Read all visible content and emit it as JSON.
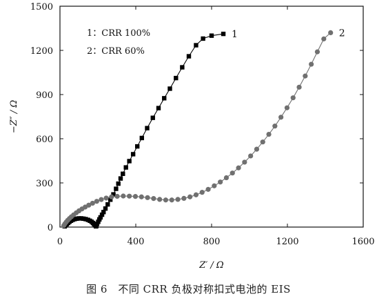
{
  "caption": "图 6　不同 CRR 负极对称扣式电池的 EIS",
  "chart_data": {
    "type": "scatter",
    "title": "",
    "xlabel": "Z′ / Ω",
    "ylabel": "−Z″ / Ω",
    "xlim": [
      0,
      1600
    ],
    "ylim": [
      0,
      1500
    ],
    "xticks": [
      0,
      400,
      800,
      1200,
      1600
    ],
    "yticks": [
      0,
      300,
      600,
      900,
      1200,
      1500
    ],
    "xtick_labels": [
      "0",
      "400",
      "800",
      "1200",
      "1600"
    ],
    "ytick_labels": [
      "0",
      "300",
      "600",
      "900",
      "1200",
      "1500"
    ],
    "grid": false,
    "legend_position": "top-left",
    "legend": [
      "1：CRR 100%",
      "2：CRR 60%"
    ],
    "series": [
      {
        "name": "1",
        "label": "1",
        "marker": "square",
        "color": "#000000",
        "points": [
          [
            25,
            5
          ],
          [
            30,
            12
          ],
          [
            36,
            20
          ],
          [
            43,
            28
          ],
          [
            50,
            36
          ],
          [
            58,
            43
          ],
          [
            67,
            49
          ],
          [
            77,
            54
          ],
          [
            88,
            57
          ],
          [
            100,
            59
          ],
          [
            112,
            59
          ],
          [
            124,
            57
          ],
          [
            136,
            54
          ],
          [
            148,
            49
          ],
          [
            158,
            43
          ],
          [
            167,
            36
          ],
          [
            174,
            28
          ],
          [
            180,
            20
          ],
          [
            185,
            12
          ],
          [
            190,
            5
          ],
          [
            192,
            8
          ],
          [
            196,
            22
          ],
          [
            202,
            36
          ],
          [
            208,
            52
          ],
          [
            214,
            66
          ],
          [
            222,
            84
          ],
          [
            230,
            102
          ],
          [
            240,
            126
          ],
          [
            252,
            154
          ],
          [
            266,
            186
          ],
          [
            282,
            222
          ],
          [
            296,
            260
          ],
          [
            308,
            295
          ],
          [
            320,
            330
          ],
          [
            332,
            362
          ],
          [
            348,
            405
          ],
          [
            366,
            448
          ],
          [
            386,
            495
          ],
          [
            408,
            548
          ],
          [
            432,
            605
          ],
          [
            460,
            672
          ],
          [
            490,
            742
          ],
          [
            520,
            808
          ],
          [
            550,
            875
          ],
          [
            580,
            940
          ],
          [
            612,
            1012
          ],
          [
            645,
            1085
          ],
          [
            680,
            1160
          ],
          [
            718,
            1235
          ],
          [
            755,
            1280
          ],
          [
            800,
            1300
          ],
          [
            862,
            1312
          ]
        ]
      },
      {
        "name": "2",
        "label": "2",
        "marker": "circle",
        "color": "#707070",
        "points": [
          [
            20,
            10
          ],
          [
            26,
            22
          ],
          [
            33,
            34
          ],
          [
            41,
            46
          ],
          [
            50,
            58
          ],
          [
            60,
            70
          ],
          [
            72,
            83
          ],
          [
            86,
            97
          ],
          [
            100,
            110
          ],
          [
            116,
            123
          ],
          [
            133,
            136
          ],
          [
            152,
            149
          ],
          [
            172,
            162
          ],
          [
            194,
            175
          ],
          [
            218,
            187
          ],
          [
            244,
            197
          ],
          [
            272,
            205
          ],
          [
            302,
            209
          ],
          [
            334,
            211
          ],
          [
            366,
            210
          ],
          [
            398,
            208
          ],
          [
            430,
            205
          ],
          [
            462,
            200
          ],
          [
            494,
            194
          ],
          [
            526,
            188
          ],
          [
            558,
            184
          ],
          [
            590,
            184
          ],
          [
            622,
            188
          ],
          [
            654,
            195
          ],
          [
            686,
            205
          ],
          [
            718,
            219
          ],
          [
            750,
            236
          ],
          [
            782,
            256
          ],
          [
            814,
            280
          ],
          [
            846,
            306
          ],
          [
            878,
            335
          ],
          [
            910,
            367
          ],
          [
            942,
            402
          ],
          [
            974,
            441
          ],
          [
            1006,
            483
          ],
          [
            1038,
            529
          ],
          [
            1070,
            578
          ],
          [
            1102,
            630
          ],
          [
            1134,
            686
          ],
          [
            1166,
            746
          ],
          [
            1198,
            810
          ],
          [
            1230,
            878
          ],
          [
            1262,
            950
          ],
          [
            1294,
            1026
          ],
          [
            1326,
            1106
          ],
          [
            1358,
            1190
          ],
          [
            1392,
            1278
          ],
          [
            1428,
            1320
          ]
        ]
      }
    ]
  }
}
